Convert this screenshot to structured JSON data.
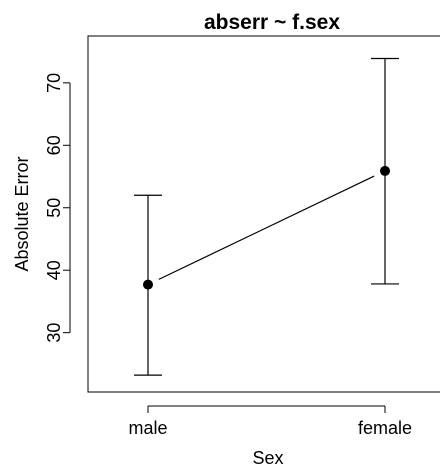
{
  "chart_data": {
    "type": "scatter",
    "title": "abserr ~ f.sex",
    "xlabel": "Sex",
    "ylabel": "Absolute Error",
    "categories": [
      "male",
      "female"
    ],
    "series": [
      {
        "values": [
          37.7,
          55.9
        ],
        "lower": [
          23.2,
          37.8
        ],
        "upper": [
          52.0,
          73.9
        ]
      }
    ],
    "ylim": [
      20.5,
      77.5
    ],
    "yticks": [
      30,
      40,
      50,
      60,
      70
    ],
    "ytick_labels": [
      "30",
      "40",
      "50",
      "60",
      "70"
    ],
    "grid": false,
    "legend": "none"
  }
}
